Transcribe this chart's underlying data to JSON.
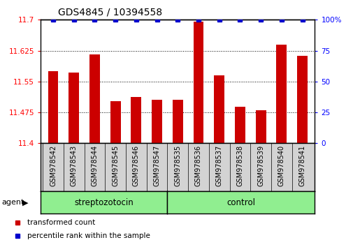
{
  "title": "GDS4845 / 10394558",
  "samples": [
    "GSM978542",
    "GSM978543",
    "GSM978544",
    "GSM978545",
    "GSM978546",
    "GSM978547",
    "GSM978535",
    "GSM978536",
    "GSM978537",
    "GSM978538",
    "GSM978539",
    "GSM978540",
    "GSM978541"
  ],
  "bar_values": [
    11.575,
    11.572,
    11.615,
    11.502,
    11.513,
    11.505,
    11.505,
    11.695,
    11.565,
    11.488,
    11.481,
    11.64,
    11.612
  ],
  "percentile_values": [
    100,
    100,
    100,
    100,
    100,
    100,
    100,
    100,
    100,
    100,
    100,
    100,
    100
  ],
  "ylim_left": [
    11.4,
    11.7
  ],
  "ylim_right": [
    0,
    100
  ],
  "yticks_left": [
    11.4,
    11.475,
    11.55,
    11.625,
    11.7
  ],
  "yticks_right": [
    0,
    25,
    50,
    75,
    100
  ],
  "bar_color": "#cc0000",
  "dot_color": "#0000cc",
  "group1_label": "streptozotocin",
  "group2_label": "control",
  "group1_n": 6,
  "group2_n": 7,
  "group_color": "#90ee90",
  "agent_label": "agent",
  "legend_bar_label": "transformed count",
  "legend_dot_label": "percentile rank within the sample",
  "background_color": "#ffffff",
  "tick_area_color": "#d3d3d3",
  "bar_width": 0.5,
  "dot_marker": "s",
  "title_fontsize": 10,
  "tick_fontsize": 7.5
}
